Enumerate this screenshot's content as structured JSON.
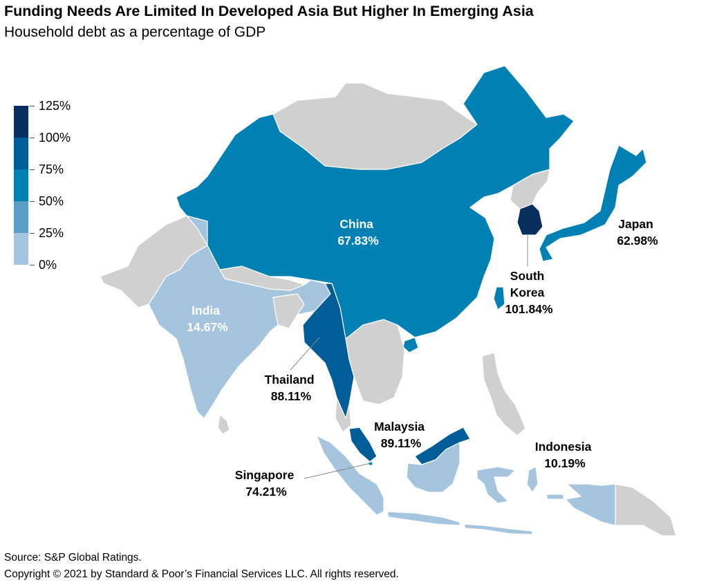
{
  "title": "Funding Needs Are Limited In Developed Asia But Higher In Emerging Asia",
  "subtitle": "Household debt as a percentage of GDP",
  "legend": {
    "bins": [
      {
        "range": [
          100,
          125
        ],
        "color": "#082f5e"
      },
      {
        "range": [
          75,
          100
        ],
        "color": "#005d97"
      },
      {
        "range": [
          50,
          75
        ],
        "color": "#0080b3"
      },
      {
        "range": [
          25,
          50
        ],
        "color": "#5a9ec5"
      },
      {
        "range": [
          0,
          25
        ],
        "color": "#a5c5de"
      }
    ],
    "labels": [
      "125%",
      "100%",
      "75%",
      "50%",
      "25%",
      "0%"
    ]
  },
  "colors": {
    "no_data": "#d0d0d0",
    "border": "#ffffff"
  },
  "countries": [
    {
      "name": "China",
      "value": "67.83%",
      "color": "#0080b3"
    },
    {
      "name": "India",
      "value": "14.67%",
      "color": "#a5c5de"
    },
    {
      "name": "Japan",
      "value": "62.98%",
      "color": "#0080b3"
    },
    {
      "name": "South Korea",
      "value": "101.84%",
      "color": "#082f5e"
    },
    {
      "name": "Thailand",
      "value": "88.11%",
      "color": "#005d97"
    },
    {
      "name": "Malaysia",
      "value": "89.11%",
      "color": "#005d97"
    },
    {
      "name": "Singapore",
      "value": "74.21%",
      "color": "#0080b3"
    },
    {
      "name": "Indonesia",
      "value": "10.19%",
      "color": "#a5c5de"
    }
  ],
  "labels": {
    "china": {
      "line1": "China",
      "line2": "67.83%"
    },
    "india": {
      "line1": "India",
      "line2": "14.67%"
    },
    "japan": {
      "line1": "Japan",
      "line2": "62.98%"
    },
    "south_korea": {
      "line1": "South",
      "line2": "Korea",
      "line3": "101.84%"
    },
    "thailand": {
      "line1": "Thailand",
      "line2": "88.11%"
    },
    "malaysia": {
      "line1": "Malaysia",
      "line2": "89.11%"
    },
    "singapore": {
      "line1": "Singapore",
      "line2": "74.21%"
    },
    "indonesia": {
      "line1": "Indonesia",
      "line2": "10.19%"
    }
  },
  "footer": {
    "source": "Source: S&P Global Ratings.",
    "copyright": "Copyright © 2021 by Standard & Poor’s Financial Services LLC. All rights reserved."
  }
}
